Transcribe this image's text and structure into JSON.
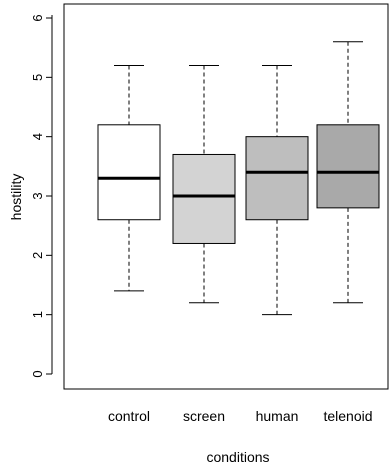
{
  "chart_data": {
    "type": "box",
    "title": "",
    "xlabel": "conditions",
    "ylabel": "hostility",
    "ylim": [
      0,
      6
    ],
    "yticks": [
      0,
      1,
      2,
      3,
      4,
      5,
      6
    ],
    "grid": false,
    "categories": [
      "control",
      "screen",
      "human",
      "telenoid"
    ],
    "boxes": [
      {
        "label": "control",
        "min": 1.4,
        "q1": 2.6,
        "median": 3.3,
        "q3": 4.2,
        "max": 5.2,
        "fill": "#ffffff"
      },
      {
        "label": "screen",
        "min": 1.2,
        "q1": 2.2,
        "median": 3.0,
        "q3": 3.7,
        "max": 5.2,
        "fill": "#d3d3d3"
      },
      {
        "label": "human",
        "min": 1.0,
        "q1": 2.6,
        "median": 3.4,
        "q3": 4.0,
        "max": 5.2,
        "fill": "#bebebe"
      },
      {
        "label": "telenoid",
        "min": 1.2,
        "q1": 2.8,
        "median": 3.4,
        "q3": 4.2,
        "max": 5.6,
        "fill": "#a9a9a9"
      }
    ]
  }
}
